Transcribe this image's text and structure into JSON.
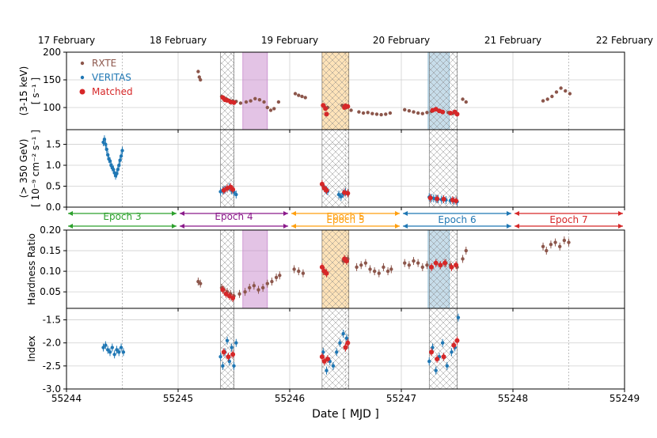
{
  "chart_data": {
    "type": "scatter",
    "title": "",
    "xlabel": "Date [ MJD ]",
    "xlim": [
      55244,
      55249
    ],
    "x_ticks": [
      55244,
      55245,
      55246,
      55247,
      55248,
      55249
    ],
    "date_labels": [
      {
        "x": 55244.0,
        "label": "17 February"
      },
      {
        "x": 55245.0,
        "label": "18 February"
      },
      {
        "x": 55246.0,
        "label": "19 February"
      },
      {
        "x": 55247.0,
        "label": "20 February"
      },
      {
        "x": 55248.0,
        "label": "21 February"
      },
      {
        "x": 55249.0,
        "label": "22 February"
      }
    ],
    "colors": {
      "rxte": "#8c564b",
      "veritas": "#1f77b4",
      "matched": "#d62728",
      "epoch3": "#2ca02c",
      "epoch4": "#8b1a8b",
      "epoch5": "#ff9f0e",
      "epoch6": "#1f77b4",
      "epoch7": "#d62728"
    },
    "legend": [
      {
        "name": "RXTE",
        "color": "#8c564b"
      },
      {
        "name": "VERITAS",
        "color": "#1f77b4"
      },
      {
        "name": "Matched",
        "color": "#d62728"
      }
    ],
    "hatched_regions": [
      [
        55245.38,
        55245.5
      ],
      [
        55246.29,
        55246.53
      ],
      [
        55247.25,
        55247.5
      ]
    ],
    "shaded_regions": [
      {
        "range": [
          55245.58,
          55245.8
        ],
        "color": "#c888cc"
      },
      {
        "range": [
          55246.29,
          55246.53
        ],
        "color": "#ffc773"
      },
      {
        "range": [
          55247.24,
          55247.43
        ],
        "color": "#8fbcd6"
      }
    ],
    "epochs": [
      {
        "label": "Epoch 3",
        "range": [
          55244.0,
          55245.0
        ],
        "color": "#2ca02c"
      },
      {
        "label": "Epoch 4",
        "range": [
          55245.0,
          55246.0
        ],
        "color": "#8b1a8b"
      },
      {
        "label": "Epoch 5",
        "range": [
          55246.0,
          55247.0
        ],
        "color": "#ff9f0e"
      },
      {
        "label": "Epoch 6",
        "range": [
          55247.0,
          55248.0
        ],
        "color": "#1f77b4"
      },
      {
        "label": "Epoch 7",
        "range": [
          55248.0,
          55249.0
        ],
        "color": "#d62728"
      }
    ],
    "panels": [
      {
        "id": "rxte_rate",
        "ylabel_lines": [
          "(3-15 keV)",
          "[ s⁻¹ ]"
        ],
        "ylim": [
          60,
          200
        ],
        "yticks": [
          100,
          150,
          200
        ],
        "series": [
          {
            "name": "RXTE",
            "color": "#8c564b",
            "x": [
              55245.18,
              55245.19,
              55245.2,
              55245.39,
              55245.41,
              55245.43,
              55245.46,
              55245.49,
              55245.52,
              55245.56,
              55245.61,
              55245.65,
              55245.69,
              55245.73,
              55245.77,
              55245.8,
              55245.83,
              55245.86,
              55245.9,
              55246.05,
              55246.08,
              55246.11,
              55246.14,
              55246.31,
              55246.34,
              55246.47,
              55246.51,
              55246.55,
              55246.62,
              55246.66,
              55246.7,
              55246.74,
              55246.78,
              55246.82,
              55246.86,
              55246.9,
              55247.03,
              55247.07,
              55247.11,
              55247.15,
              55247.19,
              55247.23,
              55247.27,
              55247.42,
              55247.46,
              55247.55,
              55247.58,
              55248.27,
              55248.31,
              55248.35,
              55248.39,
              55248.43,
              55248.47,
              55248.51
            ],
            "y": [
              165,
              155,
              150,
              120,
              118,
              116,
              113,
              112,
              111,
              108,
              110,
              112,
              116,
              114,
              110,
              100,
              95,
              98,
              110,
              125,
              122,
              120,
              118,
              102,
              100,
              104,
              100,
              95,
              92,
              90,
              91,
              89,
              88,
              87,
              88,
              90,
              96,
              94,
              92,
              90,
              89,
              91,
              93,
              91,
              89,
              115,
              110,
              112,
              115,
              120,
              128,
              135,
              130,
              125
            ]
          },
          {
            "name": "Matched",
            "color": "#d62728",
            "x": [
              55245.4,
              55245.42,
              55245.44,
              55245.47,
              55245.5,
              55246.3,
              55246.32,
              55246.33,
              55246.49,
              55246.5,
              55246.52,
              55247.28,
              55247.31,
              55247.34,
              55247.37,
              55247.44,
              55247.48,
              55247.5
            ],
            "y": [
              118,
              114,
              113,
              110,
              109,
              104,
              98,
              88,
              100,
              103,
              102,
              95,
              97,
              94,
              92,
              90,
              92,
              88
            ]
          }
        ]
      },
      {
        "id": "veritas_flux",
        "ylabel_lines": [
          "(> 350 GeV)",
          "[ 10⁻⁹ cm⁻² s⁻¹ ]"
        ],
        "ylim": [
          0.0,
          1.85
        ],
        "yticks": [
          0.0,
          0.5,
          1.0,
          1.5
        ],
        "series": [
          {
            "name": "VERITAS",
            "color": "#1f77b4",
            "x": [
              55244.33,
              55244.34,
              55244.35,
              55244.36,
              55244.37,
              55244.38,
              55244.39,
              55244.4,
              55244.41,
              55244.42,
              55244.43,
              55244.44,
              55244.45,
              55244.46,
              55244.47,
              55244.48,
              55244.49,
              55244.5,
              55245.38,
              55245.4,
              55245.42,
              55245.44,
              55245.46,
              55245.48,
              55245.5,
              55245.52,
              55246.3,
              55246.32,
              55246.34,
              55246.44,
              55246.46,
              55246.48,
              55246.5,
              55247.25,
              55247.27,
              55247.29,
              55247.31,
              55247.33,
              55247.36,
              55247.4,
              55247.44,
              55247.47,
              55247.5
            ],
            "y": [
              1.55,
              1.62,
              1.5,
              1.38,
              1.25,
              1.15,
              1.1,
              1.0,
              0.95,
              0.9,
              0.82,
              0.75,
              0.8,
              0.9,
              1.0,
              1.12,
              1.22,
              1.35,
              0.37,
              0.4,
              0.42,
              0.44,
              0.48,
              0.4,
              0.36,
              0.3,
              0.5,
              0.42,
              0.38,
              0.3,
              0.25,
              0.32,
              0.36,
              0.24,
              0.22,
              0.21,
              0.2,
              0.19,
              0.18,
              0.17,
              0.16,
              0.15,
              0.13
            ]
          },
          {
            "name": "Matched",
            "color": "#d62728",
            "x": [
              55245.41,
              55245.44,
              55245.47,
              55245.49,
              55246.29,
              55246.31,
              55246.33,
              55246.49,
              55246.52,
              55247.26,
              55247.32,
              55247.38,
              55247.46,
              55247.49
            ],
            "y": [
              0.4,
              0.45,
              0.48,
              0.42,
              0.55,
              0.45,
              0.4,
              0.35,
              0.33,
              0.22,
              0.2,
              0.19,
              0.17,
              0.15
            ]
          }
        ]
      },
      {
        "id": "hardness",
        "ylabel_lines": [
          "Hardness Ratio"
        ],
        "ylim": [
          0.01,
          0.2
        ],
        "yticks": [
          0.05,
          0.1,
          0.15,
          0.2
        ],
        "series": [
          {
            "name": "RXTE",
            "color": "#8c564b",
            "x": [
              55245.18,
              55245.2,
              55245.39,
              55245.41,
              55245.44,
              55245.47,
              55245.5,
              55245.55,
              55245.6,
              55245.64,
              55245.68,
              55245.72,
              55245.76,
              55245.8,
              55245.84,
              55245.88,
              55245.91,
              55246.04,
              55246.08,
              55246.12,
              55246.3,
              55246.33,
              55246.48,
              55246.52,
              55246.6,
              55246.64,
              55246.68,
              55246.72,
              55246.76,
              55246.8,
              55246.84,
              55246.88,
              55246.91,
              55247.03,
              55247.07,
              55247.11,
              55247.15,
              55247.19,
              55247.23,
              55247.4,
              55247.44,
              55247.5,
              55247.55,
              55247.58,
              55248.27,
              55248.3,
              55248.34,
              55248.38,
              55248.42,
              55248.46,
              55248.5
            ],
            "y": [
              0.075,
              0.07,
              0.06,
              0.055,
              0.05,
              0.045,
              0.04,
              0.045,
              0.05,
              0.06,
              0.065,
              0.055,
              0.06,
              0.07,
              0.075,
              0.085,
              0.09,
              0.105,
              0.1,
              0.095,
              0.1,
              0.095,
              0.125,
              0.13,
              0.11,
              0.115,
              0.12,
              0.105,
              0.1,
              0.095,
              0.11,
              0.1,
              0.105,
              0.12,
              0.115,
              0.125,
              0.12,
              0.11,
              0.115,
              0.12,
              0.115,
              0.11,
              0.13,
              0.15,
              0.16,
              0.15,
              0.165,
              0.17,
              0.16,
              0.175,
              0.17
            ]
          },
          {
            "name": "Matched",
            "color": "#d62728",
            "x": [
              55245.4,
              55245.43,
              55245.46,
              55245.49,
              55246.29,
              55246.31,
              55246.33,
              55246.49,
              55246.51,
              55247.27,
              55247.31,
              55247.35,
              55247.39,
              55247.45,
              55247.49
            ],
            "y": [
              0.055,
              0.045,
              0.04,
              0.035,
              0.11,
              0.1,
              0.095,
              0.13,
              0.125,
              0.11,
              0.12,
              0.115,
              0.12,
              0.11,
              0.115
            ]
          }
        ]
      },
      {
        "id": "index",
        "ylabel_lines": [
          "Index"
        ],
        "ylim": [
          -3.0,
          -1.25
        ],
        "yticks": [
          -3.0,
          -2.5,
          -2.0,
          -1.5
        ],
        "series": [
          {
            "name": "VERITAS",
            "color": "#1f77b4",
            "x": [
              55244.33,
              55244.35,
              55244.37,
              55244.39,
              55244.41,
              55244.43,
              55244.45,
              55244.47,
              55244.49,
              55244.51,
              55245.38,
              55245.4,
              55245.42,
              55245.44,
              55245.46,
              55245.48,
              55245.5,
              55245.52,
              55246.3,
              55246.33,
              55246.36,
              55246.39,
              55246.42,
              55246.45,
              55246.48,
              55246.51,
              55247.25,
              55247.28,
              55247.31,
              55247.34,
              55247.37,
              55247.41,
              55247.45,
              55247.48,
              55247.51
            ],
            "y": [
              -2.1,
              -2.05,
              -2.15,
              -2.2,
              -2.1,
              -2.25,
              -2.15,
              -2.2,
              -2.1,
              -2.2,
              -2.3,
              -2.5,
              -2.2,
              -1.95,
              -2.4,
              -2.1,
              -2.5,
              -2.0,
              -2.2,
              -2.6,
              -2.4,
              -2.5,
              -2.2,
              -2.0,
              -1.8,
              -1.9,
              -2.4,
              -2.1,
              -2.6,
              -2.3,
              -2.0,
              -2.5,
              -2.2,
              -2.1,
              -1.45
            ]
          },
          {
            "name": "Matched",
            "color": "#d62728",
            "x": [
              55245.41,
              55245.45,
              55245.49,
              55246.29,
              55246.31,
              55246.34,
              55246.5,
              55246.52,
              55247.27,
              55247.32,
              55247.38,
              55247.47,
              55247.5
            ],
            "y": [
              -2.2,
              -2.3,
              -2.25,
              -2.3,
              -2.4,
              -2.35,
              -2.1,
              -2.0,
              -2.2,
              -2.35,
              -2.3,
              -2.05,
              -1.95
            ]
          }
        ]
      }
    ]
  }
}
